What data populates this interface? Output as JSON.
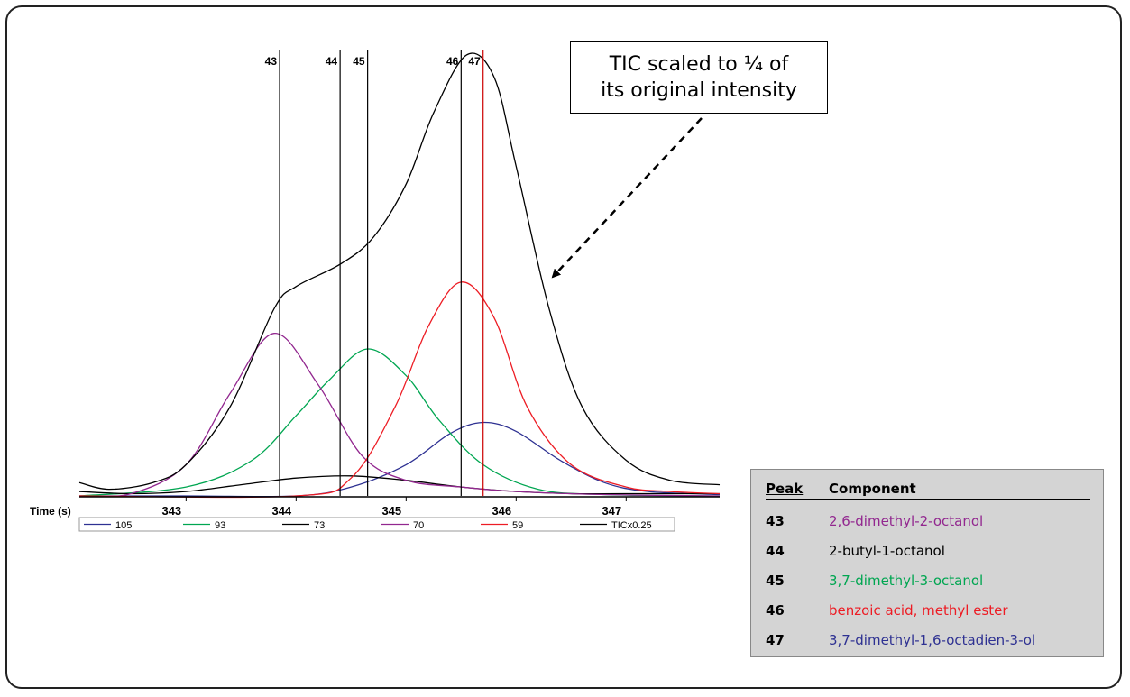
{
  "callout": {
    "text": "TIC scaled to ¼ of\nits original intensity"
  },
  "chart_data": {
    "type": "line",
    "xlabel": "Time (s)",
    "xlim": [
      342.03,
      347.85
    ],
    "ylim": [
      0,
      1.0
    ],
    "x_ticks": [
      "343",
      "344",
      "345",
      "346",
      "347"
    ],
    "x_tick_values": [
      343,
      344,
      345,
      346,
      347
    ],
    "grid": false,
    "legend_position": "bottom",
    "markers": [
      {
        "label": "43",
        "x": 343.85,
        "color": "#000000"
      },
      {
        "label": "44",
        "x": 344.4,
        "color": "#000000"
      },
      {
        "label": "45",
        "x": 344.65,
        "color": "#000000"
      },
      {
        "label": "46",
        "x": 345.5,
        "color": "#000000"
      },
      {
        "label": "47",
        "x": 345.7,
        "color": "#cc0000"
      }
    ],
    "series": [
      {
        "name": "105",
        "color": "#2e3192",
        "x": [
          342.03,
          343.0,
          344.0,
          344.5,
          345.0,
          345.4,
          345.7,
          346.0,
          346.4,
          346.8,
          347.2,
          347.85
        ],
        "y": [
          0.0,
          0.0,
          0.0,
          0.02,
          0.07,
          0.14,
          0.165,
          0.145,
          0.08,
          0.03,
          0.01,
          0.003
        ]
      },
      {
        "name": "93",
        "color": "#00a651",
        "x": [
          342.03,
          343.0,
          343.6,
          344.0,
          344.3,
          344.65,
          345.0,
          345.3,
          345.7,
          346.2,
          346.8,
          347.85
        ],
        "y": [
          0.0,
          0.02,
          0.08,
          0.18,
          0.26,
          0.33,
          0.27,
          0.17,
          0.07,
          0.015,
          0.003,
          0.0
        ]
      },
      {
        "name": "73",
        "color": "#000000",
        "x": [
          342.03,
          342.5,
          343.0,
          343.5,
          344.0,
          344.5,
          345.0,
          345.5,
          346.0,
          346.5,
          347.0,
          347.85
        ],
        "y": [
          0.01,
          0.005,
          0.01,
          0.025,
          0.04,
          0.045,
          0.035,
          0.02,
          0.01,
          0.005,
          0.005,
          0.005
        ]
      },
      {
        "name": "70",
        "color": "#92278f",
        "x": [
          342.03,
          342.5,
          343.0,
          343.4,
          343.8,
          344.2,
          344.6,
          345.0,
          345.5,
          346.0,
          346.8,
          347.85
        ],
        "y": [
          0.0,
          0.005,
          0.07,
          0.23,
          0.365,
          0.25,
          0.09,
          0.035,
          0.02,
          0.01,
          0.003,
          0.0
        ]
      },
      {
        "name": "59",
        "color": "#ed1c24",
        "x": [
          342.03,
          344.0,
          344.5,
          344.9,
          345.2,
          345.5,
          345.8,
          346.1,
          346.5,
          347.0,
          347.4,
          347.85
        ],
        "y": [
          0.0,
          0.0,
          0.04,
          0.2,
          0.38,
          0.48,
          0.4,
          0.2,
          0.07,
          0.02,
          0.01,
          0.005
        ]
      },
      {
        "name": "TICx0.25",
        "color": "#000000",
        "x": [
          342.03,
          342.3,
          342.7,
          343.0,
          343.4,
          343.8,
          344.0,
          344.4,
          344.7,
          345.0,
          345.25,
          345.55,
          345.8,
          346.0,
          346.3,
          346.6,
          347.0,
          347.4,
          347.85
        ],
        "y": [
          0.03,
          0.015,
          0.03,
          0.07,
          0.2,
          0.42,
          0.47,
          0.52,
          0.58,
          0.7,
          0.86,
          0.99,
          0.94,
          0.74,
          0.42,
          0.2,
          0.08,
          0.035,
          0.025
        ]
      }
    ]
  },
  "peak_table": {
    "header": {
      "peak": "Peak",
      "component": "Component"
    },
    "rows": [
      {
        "peak": "43",
        "component": "2,6-dimethyl-2-octanol",
        "color": "#92278f"
      },
      {
        "peak": "44",
        "component": "2-butyl-1-octanol",
        "color": "#000000"
      },
      {
        "peak": "45",
        "component": "3,7-dimethyl-3-octanol",
        "color": "#00a651"
      },
      {
        "peak": "46",
        "component": "benzoic acid, methyl ester",
        "color": "#ed1c24"
      },
      {
        "peak": "47",
        "component": "3,7-dimethyl-1,6-octadien-3-ol",
        "color": "#2e3192"
      }
    ]
  }
}
